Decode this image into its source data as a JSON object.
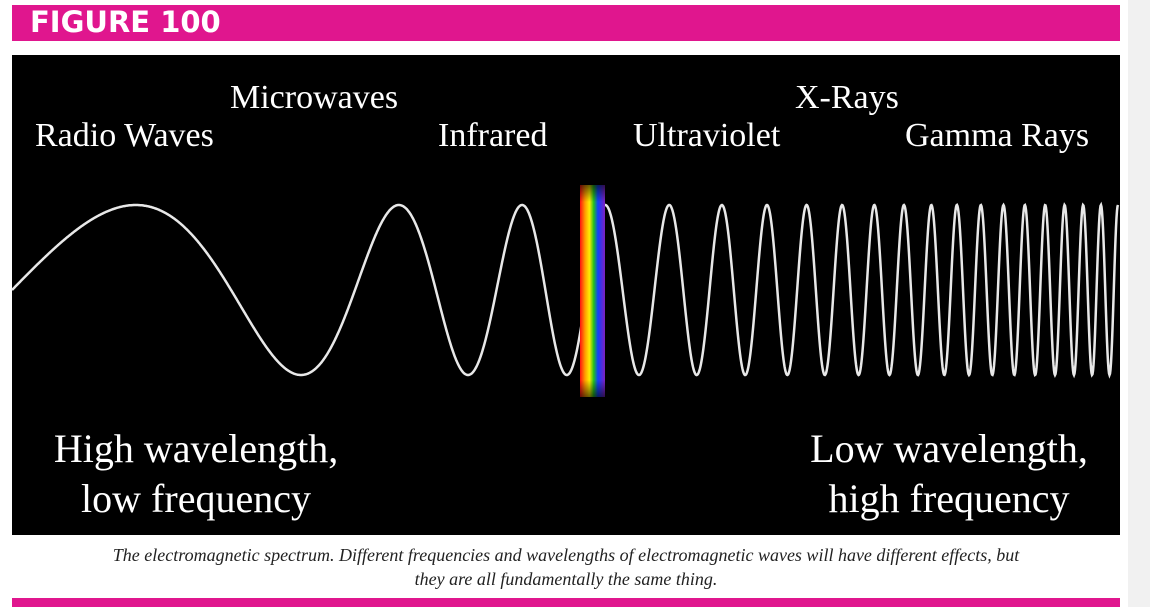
{
  "header": {
    "title": "FIGURE 100"
  },
  "figure": {
    "labels": [
      "Radio Waves",
      "Microwaves",
      "Infrared",
      "Ultraviolet",
      "X-Rays",
      "Gamma Rays"
    ],
    "left_text": [
      "High wavelength,",
      "low frequency"
    ],
    "right_text": [
      "Low wavelength,",
      "high frequency"
    ]
  },
  "caption": [
    "The electromagnetic spectrum. Different frequencies and wavelengths of electromagnetic waves will have different effects, but",
    "they are all fundamentally the same thing."
  ]
}
